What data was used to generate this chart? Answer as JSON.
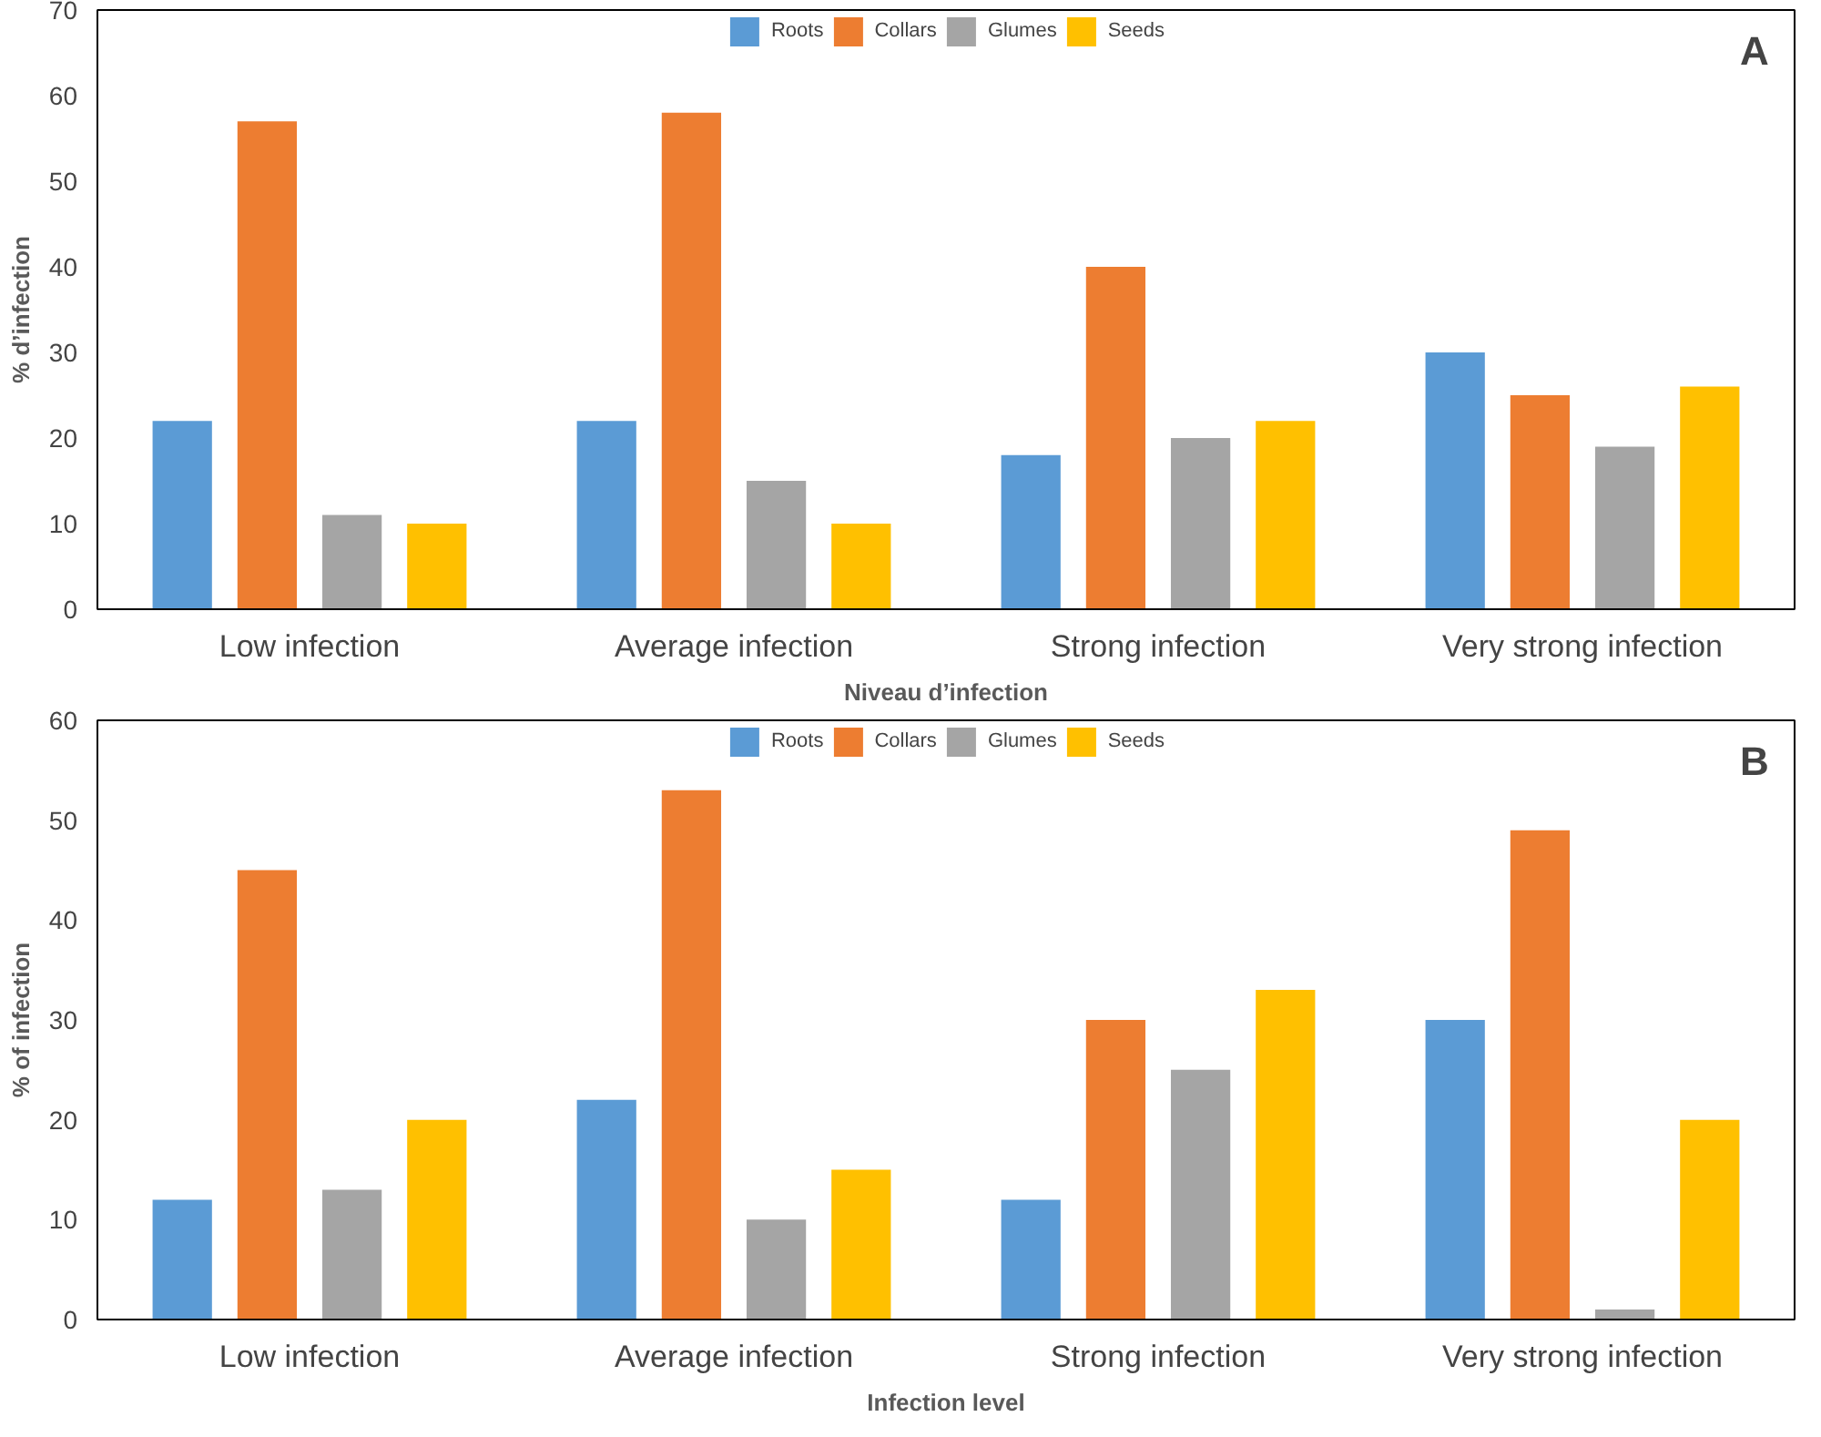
{
  "chart_data": [
    {
      "type": "bar",
      "annotations": [
        "A"
      ],
      "xlabel": "Niveau d’infection",
      "ylabel": "% d’infection",
      "categories": [
        "Low infection",
        "Average infection",
        "Strong infection",
        "Very strong infection"
      ],
      "series": [
        {
          "name": "Roots",
          "color": "#5b9bd5",
          "values": [
            22,
            22,
            18,
            30
          ]
        },
        {
          "name": "Collars",
          "color": "#ed7d31",
          "values": [
            57,
            58,
            40,
            25
          ]
        },
        {
          "name": "Glumes",
          "color": "#a5a5a5",
          "values": [
            11,
            15,
            20,
            19
          ]
        },
        {
          "name": "Seeds",
          "color": "#ffc000",
          "values": [
            10,
            10,
            22,
            26
          ]
        }
      ],
      "ylim": [
        0,
        70
      ],
      "yticks": [
        0,
        10,
        20,
        30,
        40,
        50,
        60,
        70
      ],
      "grid": false,
      "legend": "top"
    },
    {
      "type": "bar",
      "annotations": [
        "B"
      ],
      "xlabel": "Infection level",
      "ylabel": "% of infection",
      "categories": [
        "Low infection",
        "Average infection",
        "Strong infection",
        "Very strong infection"
      ],
      "series": [
        {
          "name": "Roots",
          "color": "#5b9bd5",
          "values": [
            12,
            22,
            12,
            30
          ]
        },
        {
          "name": "Collars",
          "color": "#ed7d31",
          "values": [
            45,
            53,
            30,
            49
          ]
        },
        {
          "name": "Glumes",
          "color": "#a5a5a5",
          "values": [
            13,
            10,
            25,
            1
          ]
        },
        {
          "name": "Seeds",
          "color": "#ffc000",
          "values": [
            20,
            15,
            33,
            20
          ]
        }
      ],
      "ylim": [
        0,
        60
      ],
      "yticks": [
        0,
        10,
        20,
        30,
        40,
        50,
        60
      ],
      "grid": false,
      "legend": "top"
    }
  ]
}
